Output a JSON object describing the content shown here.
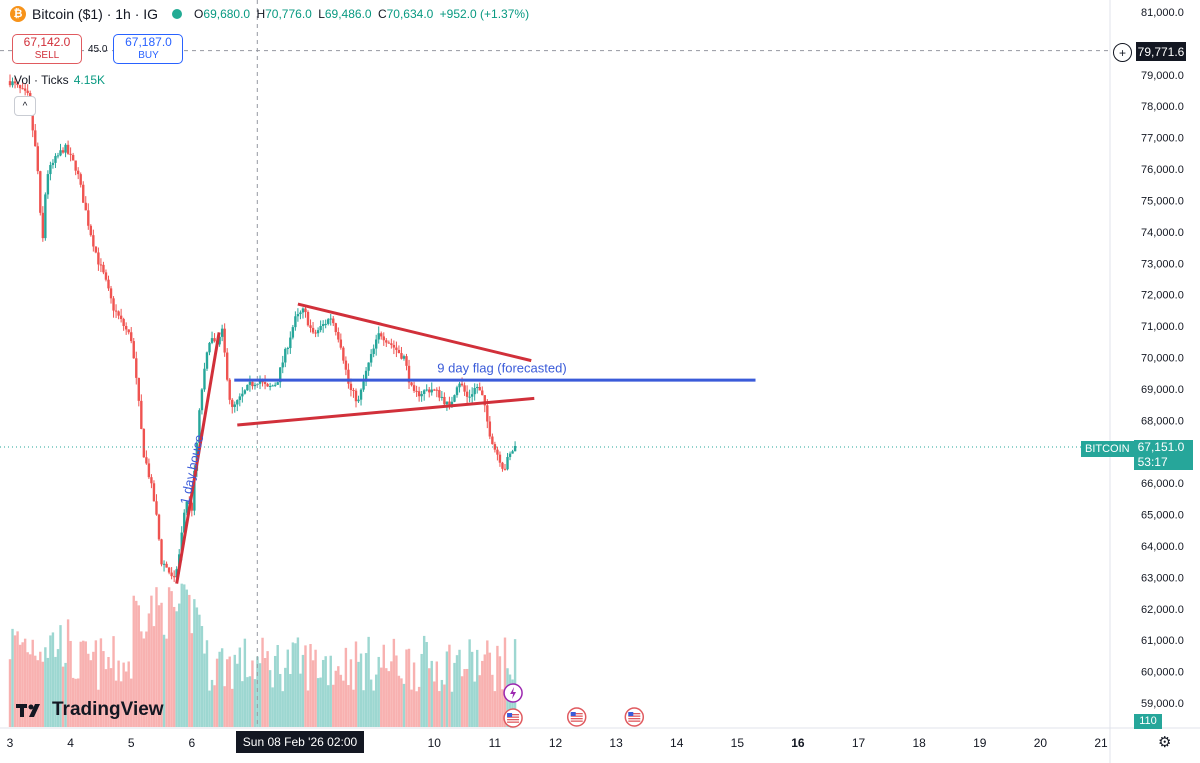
{
  "legend": {
    "coin_glyph": "₿",
    "symbol": "Bitcoin ($1) · 1h · IG",
    "open_label": "O",
    "open": "69,680.0",
    "high_label": "H",
    "high": "70,776.0",
    "low_label": "L",
    "low": "69,486.0",
    "close_label": "C",
    "close": "70,634.0",
    "change": "+952.0 (+1.37%)"
  },
  "trade": {
    "sell_price": "67,142.0",
    "sell_label": "SELL",
    "spread": "45.0",
    "buy_price": "67,187.0",
    "buy_label": "BUY"
  },
  "volume_legend": {
    "label": "Vol · Ticks",
    "value": "4.15K"
  },
  "collapse_glyph": "^",
  "brand": {
    "name": "TradingView",
    "mark": "TV"
  },
  "crosshair": {
    "price": "79,771.6",
    "date": "Sun 08 Feb '26   02:00",
    "plus_glyph": "+"
  },
  "last_price": {
    "symbol": "BITCOIN",
    "price": "67,151.0",
    "countdown": "53:17"
  },
  "volume_tag": "110",
  "settings_glyph": "⚙",
  "colors": {
    "up": "#26a69a",
    "down": "#ef5350",
    "pattern_red": "#d1303a",
    "pattern_blue": "#3a5bd9"
  },
  "chart_data": {
    "type": "candlestick",
    "y_ticks": [
      59000,
      60000,
      61000,
      62000,
      63000,
      64000,
      65000,
      66000,
      67000,
      68000,
      69000,
      70000,
      71000,
      72000,
      73000,
      74000,
      75000,
      76000,
      77000,
      78000,
      79000,
      81000
    ],
    "y_tick_labels": [
      "59,000.0",
      "60,000.0",
      "61,000.0",
      "62,000.0",
      "63,000.0",
      "64,000.0",
      "65,000.0",
      "66,000.0",
      "67,000.0",
      "68,000.0",
      "69,000.0",
      "70,000.0",
      "71,000.0",
      "72,000.0",
      "73,000.0",
      "74,000.0",
      "75,000.0",
      "76,000.0",
      "77,000.0",
      "78,000.0",
      "79,000.0",
      "81,000.0"
    ],
    "ylim": [
      58700,
      81300
    ],
    "x_ticks": [
      3,
      4,
      5,
      6,
      10,
      11,
      12,
      13,
      14,
      15,
      16,
      17,
      18,
      19,
      20,
      21
    ],
    "x_tick_labels": [
      "3",
      "4",
      "5",
      "6",
      "10",
      "11",
      "12",
      "13",
      "14",
      "15",
      "16",
      "17",
      "18",
      "19",
      "20",
      "21"
    ],
    "x_bold": [
      "16"
    ],
    "xlim": [
      2.97,
      21.9
    ],
    "price_path": [
      [
        3.0,
        78800
      ],
      [
        3.3,
        78300
      ],
      [
        3.45,
        76200
      ],
      [
        3.5,
        74500
      ],
      [
        3.52,
        73000
      ],
      [
        3.6,
        75800
      ],
      [
        3.75,
        76300
      ],
      [
        3.9,
        76700
      ],
      [
        4.1,
        76000
      ],
      [
        4.3,
        74200
      ],
      [
        4.45,
        73100
      ],
      [
        4.55,
        72600
      ],
      [
        4.7,
        71600
      ],
      [
        4.85,
        71100
      ],
      [
        5.0,
        70600
      ],
      [
        5.1,
        69000
      ],
      [
        5.2,
        67000
      ],
      [
        5.3,
        66200
      ],
      [
        5.4,
        65200
      ],
      [
        5.5,
        63500
      ],
      [
        5.6,
        63300
      ],
      [
        5.7,
        62800
      ],
      [
        5.8,
        63800
      ],
      [
        5.9,
        65500
      ],
      [
        6.0,
        65200
      ],
      [
        6.05,
        66500
      ],
      [
        6.15,
        68800
      ],
      [
        6.3,
        70700
      ],
      [
        6.4,
        70300
      ],
      [
        6.5,
        70800
      ],
      [
        6.65,
        68300
      ],
      [
        6.8,
        68700
      ],
      [
        6.95,
        69100
      ],
      [
        7.1,
        69300
      ],
      [
        7.25,
        69000
      ],
      [
        7.4,
        69200
      ],
      [
        7.55,
        70200
      ],
      [
        7.7,
        71200
      ],
      [
        7.85,
        71500
      ],
      [
        8.0,
        70700
      ],
      [
        8.15,
        71000
      ],
      [
        8.3,
        71300
      ],
      [
        8.45,
        70500
      ],
      [
        8.6,
        69000
      ],
      [
        8.75,
        68600
      ],
      [
        8.9,
        69700
      ],
      [
        9.1,
        70800
      ],
      [
        9.3,
        70400
      ],
      [
        9.5,
        70000
      ],
      [
        9.65,
        68800
      ],
      [
        9.8,
        68900
      ],
      [
        9.95,
        69000
      ],
      [
        10.1,
        68800
      ],
      [
        10.25,
        68400
      ],
      [
        10.4,
        69300
      ],
      [
        10.55,
        68700
      ],
      [
        10.7,
        69100
      ],
      [
        10.8,
        68700
      ],
      [
        10.9,
        67700
      ],
      [
        11.0,
        67100
      ],
      [
        11.1,
        66700
      ],
      [
        11.15,
        66400
      ],
      [
        11.2,
        66700
      ],
      [
        11.28,
        67000
      ],
      [
        11.32,
        67150
      ]
    ],
    "volume_scale": [
      0,
      1000
    ],
    "annotations": [
      {
        "text": "1 day bouce"
      },
      {
        "text": "9 day flag (forecasted)"
      }
    ]
  }
}
